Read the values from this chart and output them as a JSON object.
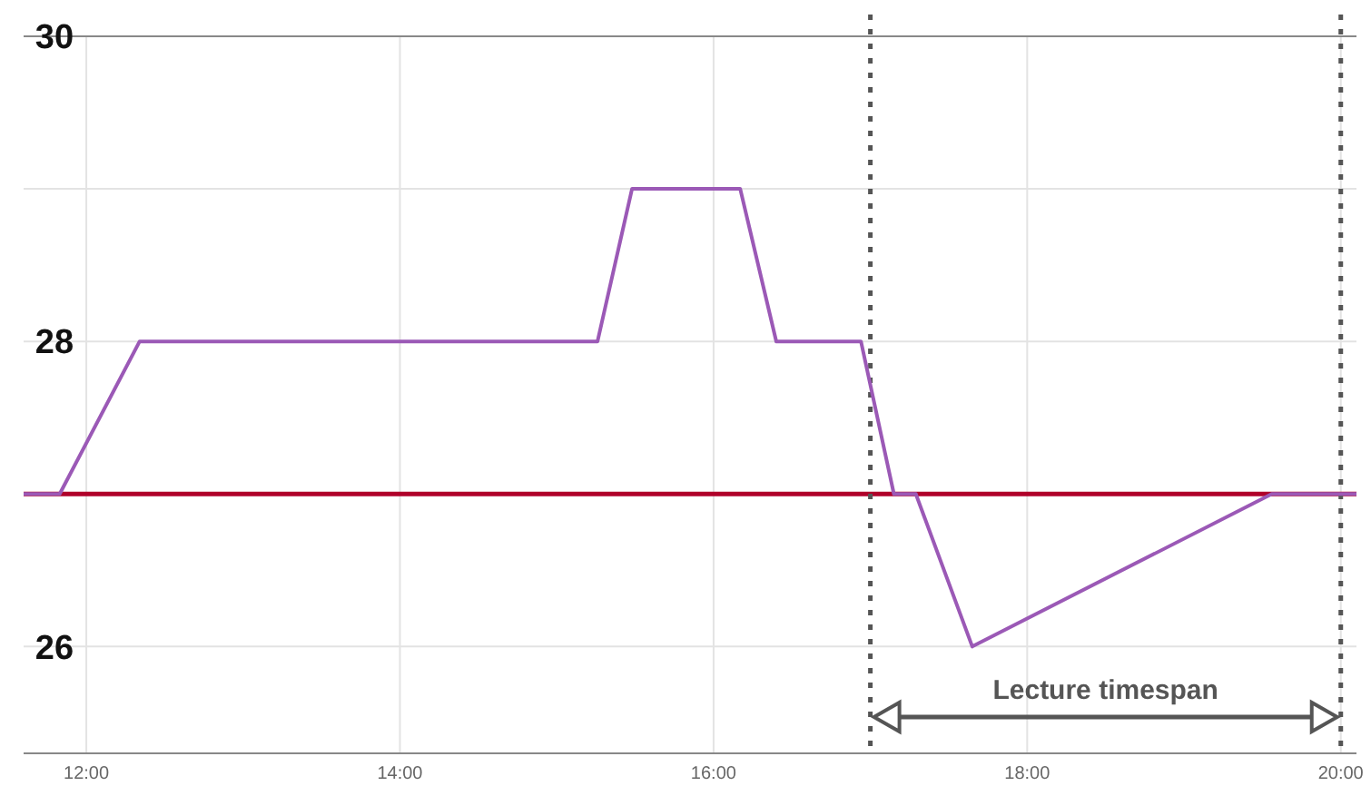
{
  "chart_data": {
    "type": "line",
    "x": [
      11.6,
      11.83,
      12.34,
      15.26,
      15.48,
      16.17,
      16.4,
      16.94,
      17.15,
      17.29,
      17.65,
      19.56,
      20.1
    ],
    "series": [
      {
        "color": "#9b59b6",
        "values": [
          27,
          27,
          28,
          28,
          29,
          29,
          28,
          28,
          27,
          27,
          26,
          27,
          27
        ]
      }
    ],
    "xlim": [
      11.6,
      20.1
    ],
    "ylim": [
      25.3,
      30
    ],
    "xticks": [
      {
        "value": 12,
        "label": "12:00"
      },
      {
        "value": 14,
        "label": "14:00"
      },
      {
        "value": 16,
        "label": "16:00"
      },
      {
        "value": 18,
        "label": "18:00"
      },
      {
        "value": 20,
        "label": "20:00"
      }
    ],
    "yticks": [
      26,
      {
        "value": 27,
        "label": null
      },
      28,
      {
        "value": 29,
        "label": null
      },
      30
    ],
    "grid": true,
    "marker": "none",
    "line_style": "solid",
    "ref_lines": [
      {
        "axis": "y",
        "value": 27,
        "color": "#b0002a",
        "line_style": "solid"
      },
      {
        "axis": "x",
        "value": 17,
        "color": "#555555",
        "line_style": "dotted"
      },
      {
        "axis": "x",
        "value": 20,
        "color": "#555555",
        "line_style": "dotted"
      }
    ],
    "annotations": [
      "Lecture timespan"
    ]
  }
}
